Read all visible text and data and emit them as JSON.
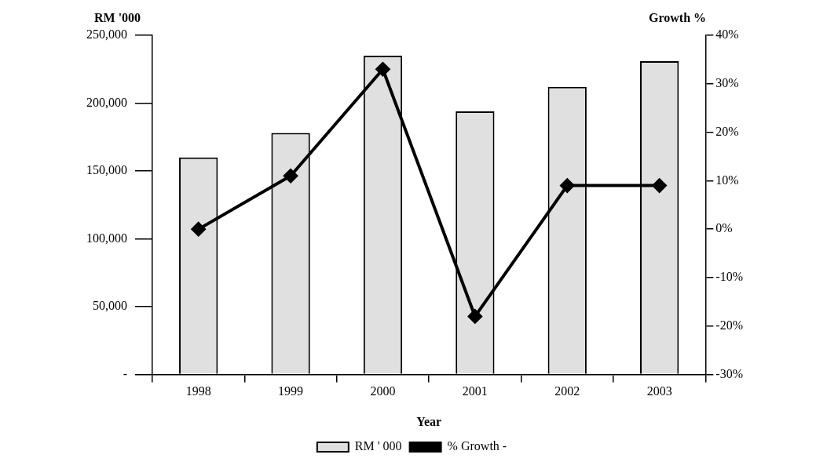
{
  "chart_data": {
    "type": "bar",
    "xlabel": "Year",
    "ylabel": "RM '000",
    "y2label": "Growth %",
    "categories": [
      "1998",
      "1999",
      "2000",
      "2001",
      "2002",
      "2003"
    ],
    "series": [
      {
        "name": "RM ' 000",
        "color": "#e0e0e0",
        "values": [
          160000,
          178000,
          235000,
          194000,
          212000,
          231000
        ]
      },
      {
        "name": "% Growth -",
        "type": "line",
        "axis": "y2",
        "color": "#000000",
        "values": [
          0,
          11,
          33,
          -18,
          9,
          9
        ]
      }
    ],
    "ylim": [
      0,
      250000
    ],
    "yticks": [
      {
        "value": 0,
        "label": "-"
      },
      {
        "value": 50000,
        "label": "50,000"
      },
      {
        "value": 100000,
        "label": "100,000"
      },
      {
        "value": 150000,
        "label": "150,000"
      },
      {
        "value": 200000,
        "label": "200,000"
      },
      {
        "value": 250000,
        "label": "250,000"
      }
    ],
    "y2lim": [
      -30,
      40
    ],
    "y2ticks": [
      {
        "value": -30,
        "label": "-30%"
      },
      {
        "value": -20,
        "label": "-20%"
      },
      {
        "value": -10,
        "label": "-10%"
      },
      {
        "value": 0,
        "label": "0%"
      },
      {
        "value": 10,
        "label": "10%"
      },
      {
        "value": 20,
        "label": "20%"
      },
      {
        "value": 30,
        "label": "30%"
      },
      {
        "value": 40,
        "label": "40%"
      }
    ],
    "grid": false,
    "legend": "bottom",
    "marker": "diamond",
    "line_style": "solid"
  }
}
